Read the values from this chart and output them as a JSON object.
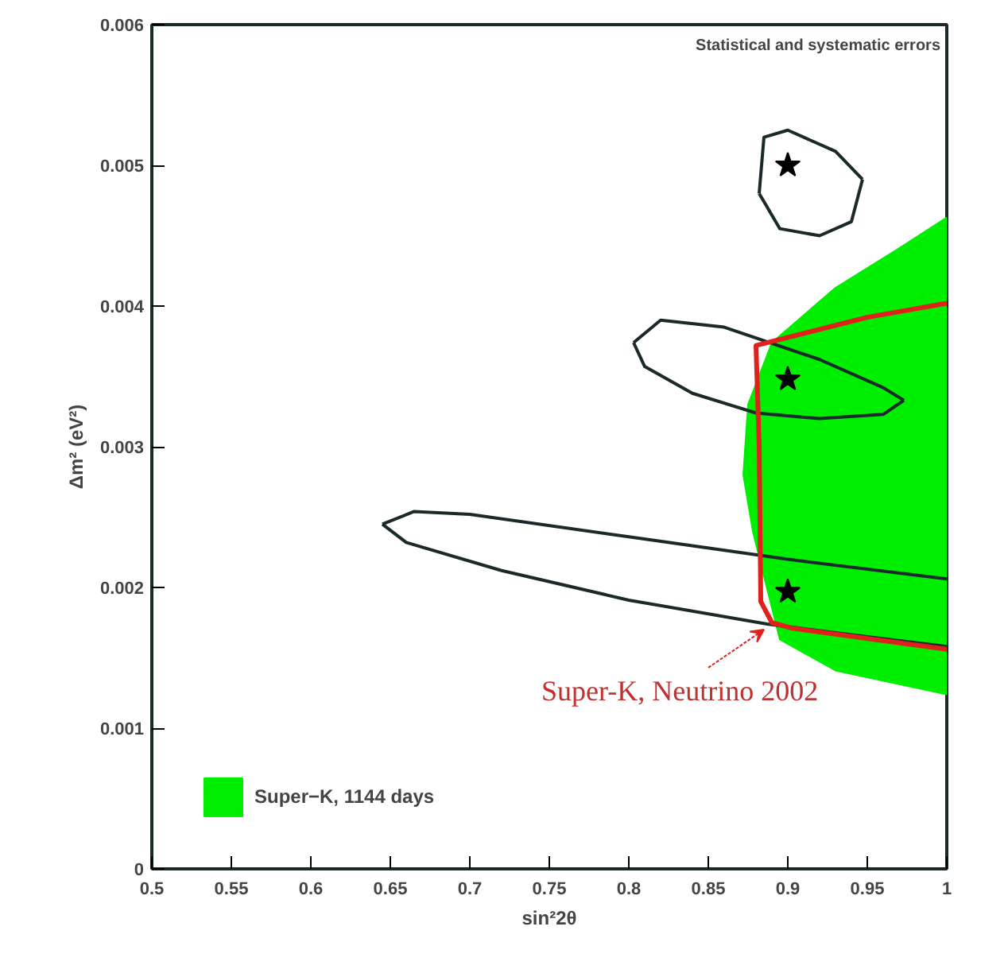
{
  "chart_data": {
    "type": "line",
    "xlabel": "sin²2θ",
    "ylabel": "Δm² (eV²)",
    "xlim": [
      0.5,
      1.0
    ],
    "ylim": [
      0,
      0.006
    ],
    "xticks": [
      0.5,
      0.55,
      0.6,
      0.65,
      0.7,
      0.75,
      0.8,
      0.85,
      0.9,
      0.95,
      1
    ],
    "yticks": [
      0,
      0.001,
      0.002,
      0.003,
      0.004,
      0.005,
      0.006
    ],
    "grid": false,
    "legend": "bottom left",
    "annotations": [
      "Statistical and systematic errors",
      {
        "text": "Super-K, Neutrino 2002",
        "x": 0.89,
        "y": 0.00175
      }
    ],
    "series": [
      {
        "name": "Super−K, 1144 days",
        "type": "area",
        "color": "#00ee00",
        "x": [
          1.0,
          0.97,
          0.93,
          0.89,
          0.875,
          0.872,
          0.878,
          0.885,
          0.895,
          0.93,
          1.0
        ],
        "values": [
          0.00463,
          0.00441,
          0.00413,
          0.00374,
          0.0033,
          0.0028,
          0.0024,
          0.00208,
          0.00163,
          0.00141,
          0.00124
        ]
      },
      {
        "color": "#1a2a2a",
        "x": [
          0.882,
          0.885,
          0.9,
          0.93,
          0.947
        ],
        "values": [
          0.0048,
          0.0052,
          0.00525,
          0.0051,
          0.0049
        ]
      },
      {
        "color": "#1a2a2a",
        "x": [
          0.882,
          0.895,
          0.92,
          0.94,
          0.947
        ],
        "values": [
          0.0048,
          0.00455,
          0.0045,
          0.0046,
          0.0049
        ]
      },
      {
        "color": "#1a2a2a",
        "x": [
          0.803,
          0.82,
          0.86,
          0.92,
          0.96,
          0.973
        ],
        "values": [
          0.00374,
          0.0039,
          0.00385,
          0.00362,
          0.00342,
          0.00333
        ]
      },
      {
        "color": "#1a2a2a",
        "x": [
          0.803,
          0.81,
          0.84,
          0.88,
          0.92,
          0.96,
          0.973
        ],
        "values": [
          0.00374,
          0.00357,
          0.00338,
          0.00324,
          0.0032,
          0.00323,
          0.00333
        ]
      },
      {
        "color": "#1a2a2a",
        "x": [
          0.645,
          0.665,
          0.7,
          0.8,
          0.9,
          1.0
        ],
        "values": [
          0.00245,
          0.00254,
          0.00252,
          0.00236,
          0.0022,
          0.00206
        ]
      },
      {
        "color": "#1a2a2a",
        "x": [
          0.645,
          0.66,
          0.72,
          0.8,
          0.887,
          0.95,
          1.0
        ],
        "values": [
          0.00245,
          0.00232,
          0.00212,
          0.00191,
          0.00174,
          0.00165,
          0.00158
        ]
      },
      {
        "color": "#e0201a",
        "x": [
          1.0,
          0.95,
          0.88,
          0.882,
          0.883,
          0.89,
          0.903,
          1.0
        ],
        "values": [
          0.00402,
          0.00392,
          0.00372,
          0.003,
          0.0019,
          0.00175,
          0.00171,
          0.00156
        ]
      },
      {
        "type": "scatter",
        "marker": "star",
        "color": "#000000",
        "x": [
          0.9,
          0.9,
          0.9
        ],
        "values": [
          0.005,
          0.00348,
          0.00197
        ]
      }
    ]
  }
}
